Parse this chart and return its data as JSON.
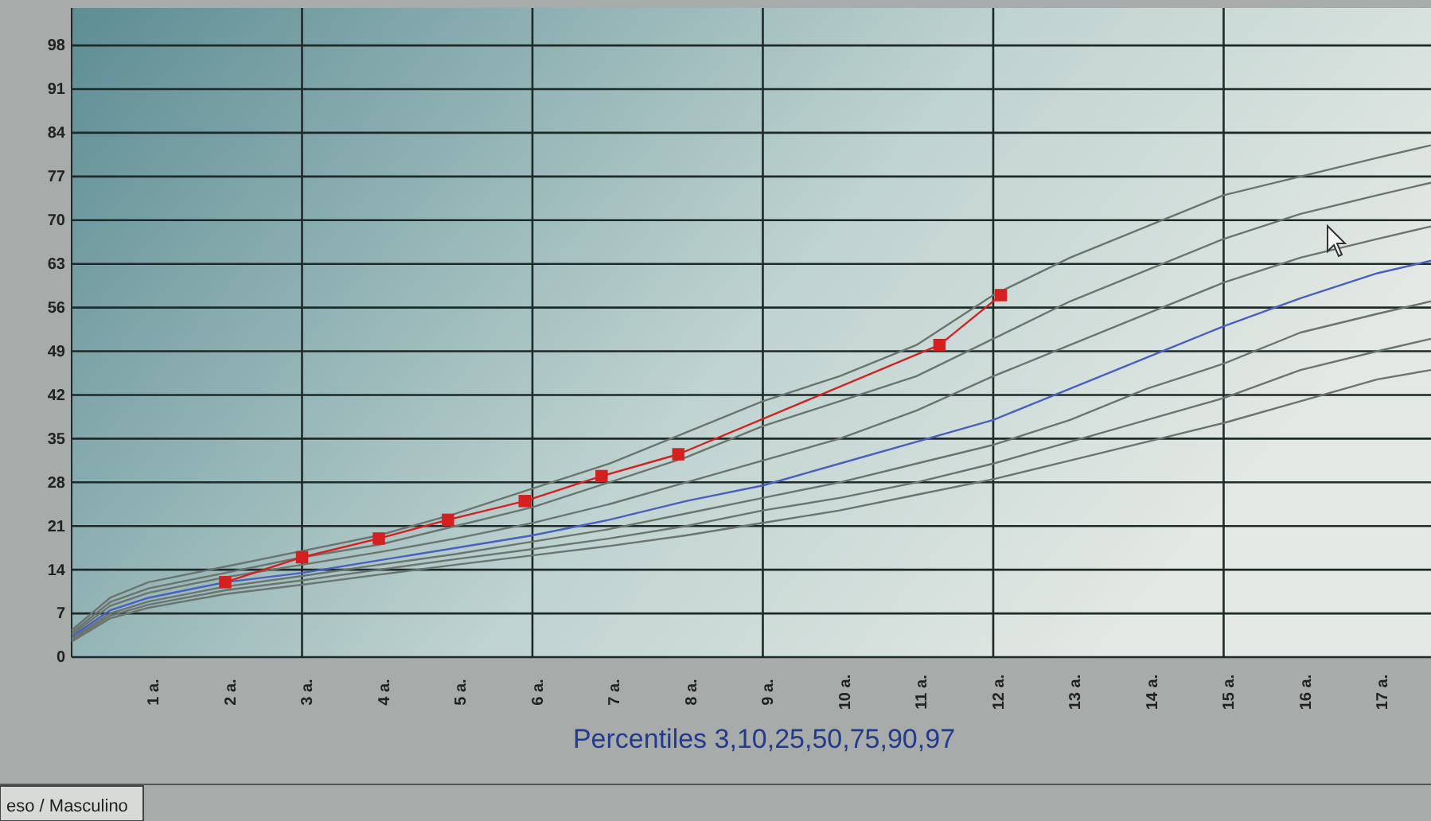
{
  "chart_data": {
    "type": "line",
    "xlabel": "Percentiles 3,10,25,50,75,90,97",
    "annotations": [
      "eso / Masculino"
    ],
    "xlim": [
      0,
      17.7
    ],
    "ylim": [
      0,
      104
    ],
    "xticks": [
      {
        "value": 1,
        "label": "1 a."
      },
      {
        "value": 2,
        "label": "2 a."
      },
      {
        "value": 3,
        "label": "3 a."
      },
      {
        "value": 4,
        "label": "4 a."
      },
      {
        "value": 5,
        "label": "5 a."
      },
      {
        "value": 6,
        "label": "6 a."
      },
      {
        "value": 7,
        "label": "7 a."
      },
      {
        "value": 8,
        "label": "8 a."
      },
      {
        "value": 9,
        "label": "9 a."
      },
      {
        "value": 10,
        "label": "10 a."
      },
      {
        "value": 11,
        "label": "11 a."
      },
      {
        "value": 12,
        "label": "12 a."
      },
      {
        "value": 13,
        "label": "13 a."
      },
      {
        "value": 14,
        "label": "14 a."
      },
      {
        "value": 15,
        "label": "15 a."
      },
      {
        "value": 16,
        "label": "16 a."
      },
      {
        "value": 17,
        "label": "17 a."
      }
    ],
    "yticks": [
      0,
      7,
      14,
      21,
      28,
      35,
      42,
      49,
      56,
      63,
      70,
      77,
      84,
      91,
      98
    ],
    "grid": "y",
    "marker": "none",
    "line_style": "solid",
    "ref_lines": [
      {
        "axis": "x",
        "value": 3,
        "color": "#1e2a28"
      },
      {
        "axis": "x",
        "value": 6,
        "color": "#1e2a28"
      },
      {
        "axis": "x",
        "value": 9,
        "color": "#1e2a28"
      },
      {
        "axis": "x",
        "value": 12,
        "color": "#1e2a28"
      },
      {
        "axis": "x",
        "value": 15,
        "color": "#1e2a28"
      }
    ],
    "x": [
      0,
      0.5,
      1,
      2,
      3,
      4,
      5,
      6,
      7,
      8,
      9,
      10,
      11,
      12,
      13,
      14,
      15,
      16,
      17,
      17.7
    ],
    "series": [
      {
        "color": "#6b756f",
        "values": [
          2.5,
          6.2,
          7.9,
          10.1,
          11.6,
          13.2,
          14.8,
          16.3,
          17.8,
          19.5,
          21.5,
          23.5,
          26,
          28.5,
          31.5,
          34.5,
          37.5,
          41,
          44.5,
          46
        ]
      },
      {
        "color": "#6b756f",
        "values": [
          2.8,
          6.6,
          8.4,
          10.7,
          12.3,
          14,
          15.7,
          17.3,
          19,
          21,
          23.5,
          25.5,
          28,
          31,
          34.5,
          38,
          41.5,
          46,
          49,
          51
        ]
      },
      {
        "color": "#6b756f",
        "values": [
          3,
          7,
          8.9,
          11.3,
          13,
          14.8,
          16.5,
          18.5,
          20.5,
          23,
          25.5,
          28,
          31,
          34,
          38,
          43,
          47,
          52,
          55,
          57
        ]
      },
      {
        "color": "#4a5fc0",
        "values": [
          3.3,
          7.5,
          9.5,
          12,
          13.5,
          15.5,
          17.5,
          19.5,
          22,
          25,
          27.5,
          31,
          34.5,
          38,
          43,
          48,
          53,
          57.5,
          61.5,
          63.5
        ]
      },
      {
        "color": "#6b756f",
        "values": [
          3.6,
          8.2,
          10.3,
          12.8,
          14.8,
          16.8,
          19,
          21.5,
          24.5,
          28,
          31.5,
          35,
          39.5,
          45,
          50,
          55,
          60,
          64,
          67,
          69
        ]
      },
      {
        "color": "#6b756f",
        "values": [
          3.9,
          8.8,
          11,
          13.5,
          16,
          18,
          21,
          24,
          28,
          32,
          37,
          41,
          45,
          51,
          57,
          62,
          67,
          71,
          74,
          76
        ]
      },
      {
        "color": "#6b756f",
        "values": [
          4.3,
          9.5,
          12,
          14.5,
          17,
          19.5,
          23,
          27,
          31,
          36,
          41,
          45,
          50,
          58,
          64,
          69,
          74,
          77,
          80,
          82
        ]
      },
      {
        "color": "#d42020",
        "marker": "square",
        "x": [
          2,
          3,
          4,
          4.9,
          5.9,
          6.9,
          7.9,
          11.3,
          12.1
        ],
        "values": [
          12,
          16,
          19,
          22,
          25,
          29,
          32.5,
          50,
          58
        ]
      }
    ]
  }
}
